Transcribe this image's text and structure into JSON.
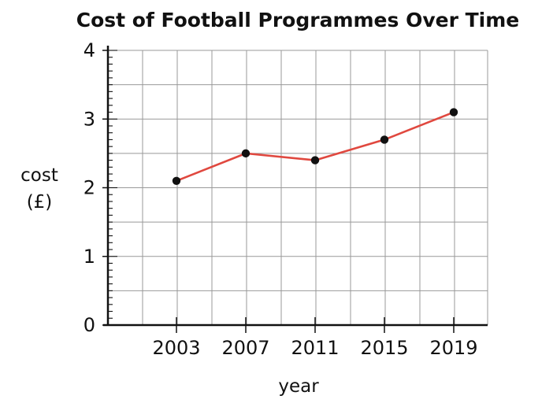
{
  "chart_data": {
    "type": "line",
    "title": "Cost of Football Programmes Over Time",
    "xlabel": "year",
    "ylabel_lines": [
      "cost",
      "(£)"
    ],
    "x": [
      "2003",
      "2007",
      "2011",
      "2015",
      "2019"
    ],
    "y": [
      2.1,
      2.5,
      2.4,
      2.7,
      3.1
    ],
    "ylim": [
      0,
      4
    ],
    "y_ticks": [
      "0",
      "1",
      "2",
      "3",
      "4"
    ],
    "grid": true,
    "colors": {
      "line": "#e0483f",
      "point": "#111111",
      "grid": "#999999",
      "axis": "#111111"
    }
  }
}
